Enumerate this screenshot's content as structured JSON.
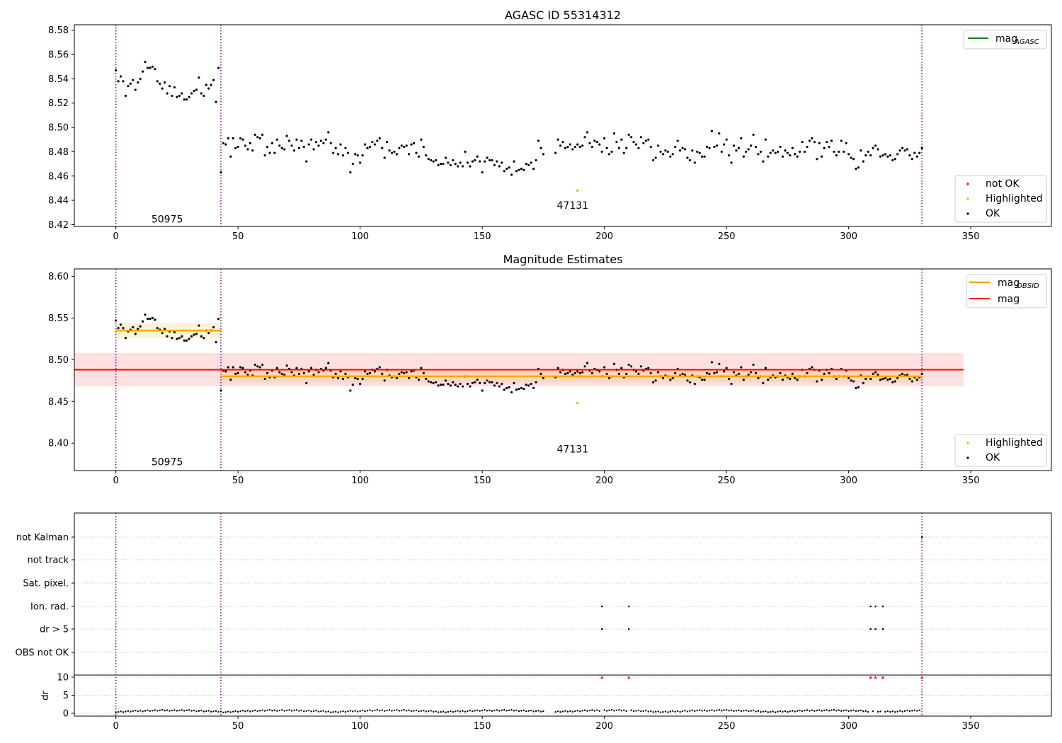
{
  "colors": {
    "ok": "#000000",
    "not_ok": "#ff0000",
    "highlighted": "#ffa500",
    "mag_agasc": "#008000",
    "mag_obsid": "#ffa500",
    "mag": "#ff0000",
    "obs_boundary": "#800080",
    "grid": "#b0b0b0"
  },
  "chart_data": [
    {
      "type": "scatter",
      "title": "AGASC ID 55314312",
      "xlim": [
        -17,
        383
      ],
      "ylim": [
        8.4185,
        8.5845
      ],
      "x_ticks": [
        0,
        50,
        100,
        150,
        200,
        250,
        300,
        350
      ],
      "y_ticks": [
        8.42,
        8.44,
        8.46,
        8.48,
        8.5,
        8.52,
        8.54,
        8.56,
        8.58
      ],
      "y_tick_labels": [
        "8.42",
        "8.44",
        "8.46",
        "8.48",
        "8.50",
        "8.52",
        "8.54",
        "8.56",
        "8.58"
      ],
      "obs_boundaries": [
        0,
        43,
        330
      ],
      "obsid_labels": [
        {
          "text": "50975",
          "x": 21,
          "y": 8.4245
        },
        {
          "text": "47131",
          "x": 187,
          "y": 8.436
        }
      ],
      "legend_upper": {
        "position": "upper right",
        "entries": [
          {
            "label": "mag",
            "subscript": "AGASC",
            "kind": "line",
            "color": "#008000"
          }
        ]
      },
      "legend_lower": {
        "position": "lower right",
        "entries": [
          {
            "label": "not OK",
            "kind": "marker",
            "color": "#ff0000"
          },
          {
            "label": "Highlighted",
            "kind": "marker",
            "color": "#ffa500"
          },
          {
            "label": "OK",
            "kind": "marker",
            "color": "#000000"
          }
        ]
      },
      "series": [
        {
          "name": "OK",
          "color": "#000000",
          "segments": [
            {
              "x_start": 0,
              "values": [
                8.547,
                8.538,
                8.542,
                8.538,
                8.526,
                8.534,
                8.536,
                8.539,
                8.531,
                8.537,
                8.54,
                8.546,
                8.554,
                8.549,
                8.549,
                8.55,
                8.548,
                8.538,
                8.536,
                8.532,
                8.537,
                8.528,
                8.534,
                8.526,
                8.533,
                8.525,
                8.526,
                8.528,
                8.523,
                8.523,
                8.525,
                8.528,
                8.53,
                8.531,
                8.541,
                8.528,
                8.526,
                8.535,
                8.532,
                8.535,
                8.539,
                8.521,
                8.549
              ]
            },
            {
              "x_start": 43,
              "values": [
                8.463,
                8.487,
                8.486,
                8.491,
                8.476,
                8.491,
                8.483,
                8.484,
                8.491,
                8.49,
                8.485,
                8.482,
                8.487,
                8.481,
                8.494,
                8.492,
                8.491,
                8.494,
                8.477,
                8.484,
                8.479,
                8.487,
                8.479,
                8.49,
                8.485,
                8.483,
                8.482,
                8.493,
                8.489,
                8.485,
                8.481,
                8.49,
                8.483,
                8.489,
                8.484,
                8.472,
                8.486,
                8.49,
                8.482,
                8.488,
                8.485,
                8.489,
                8.487,
                8.49,
                8.496,
                8.487,
                8.479,
                8.483,
                8.478,
                8.486,
                8.477,
                8.483,
                8.479,
                8.463,
                8.47,
                8.478,
                8.477,
                8.471,
                8.477,
                8.486,
                8.483,
                8.484,
                8.488,
                8.486,
                8.489,
                8.491,
                8.483,
                8.475,
                8.488,
                8.481,
                8.479,
                8.48,
                8.478,
                8.483,
                8.485,
                8.484,
                8.485,
                8.478,
                8.486,
                8.487,
                8.479,
                8.476,
                8.49,
                8.484,
                8.477,
                8.474,
                8.473,
                8.472,
                8.473,
                8.469,
                8.47,
                8.47,
                8.475,
                8.471,
                8.469,
                8.473,
                8.47,
                8.468,
                8.471,
                8.468,
                8.48,
                8.471,
                8.468,
                8.472,
                8.473,
                8.476,
                8.472,
                8.463,
                8.472,
                8.475,
                8.473,
                8.473,
                8.469,
                8.472,
                8.468,
                8.471,
                8.464,
                8.466,
                8.467,
                8.461,
                8.472,
                8.464,
                8.465,
                8.466,
                8.465,
                8.47,
                8.469,
                8.471,
                8.466,
                8.473,
                8.489,
                8.483,
                8.478
              ]
            },
            {
              "x_start": 180,
              "values": [
                8.479,
                8.49,
                8.485,
                8.488,
                8.483,
                8.484,
                8.486,
                8.482,
                8.484,
                8.486,
                8.484,
                8.485,
                8.492,
                8.496,
                8.487,
                8.484,
                8.489,
                8.488,
                8.486,
                8.48,
                8.491,
                8.483,
                8.478,
                8.48,
                8.495,
                8.488,
                8.483,
                8.49,
                8.479,
                8.483,
                8.494,
                8.492,
                8.488,
                8.486,
                8.483,
                8.492,
                8.487,
                8.489,
                8.49,
                8.484,
                8.473,
                8.475,
                8.485,
                8.48,
                8.478,
                8.481,
                8.48,
                8.476,
                8.478,
                8.484,
                8.489,
                8.481,
                8.483,
                8.482,
                8.475,
                8.473,
                8.481,
                8.471,
                8.48,
                8.479,
                8.476,
                8.476,
                8.484,
                8.483,
                8.497,
                8.484,
                8.485,
                8.495,
                8.48,
                8.486,
                8.49,
                8.477,
                8.471,
                8.485,
                8.481,
                8.483,
                8.491,
                8.476,
                8.48,
                8.482,
                8.485,
                8.494,
                8.484,
                8.478,
                8.48,
                8.472,
                8.49,
                8.476,
                8.479,
                8.481,
                8.479,
                8.48,
                8.484,
                8.476,
                8.481,
                8.479,
                8.477,
                8.483,
                8.478,
                8.476,
                8.48,
                8.488,
                8.48,
                8.484,
                8.489,
                8.491,
                8.488,
                8.474,
                8.487,
                8.476,
                8.483,
                8.488,
                8.484,
                8.489,
                8.48,
                8.477,
                8.48,
                8.489,
                8.48,
                8.487,
                8.478,
                8.475,
                8.474,
                8.466,
                8.467,
                8.481,
                8.472,
                8.477,
                8.48,
                8.477,
                8.483,
                8.485,
                8.482,
                8.476,
                8.477,
                8.478,
                8.476,
                8.477,
                8.473,
                8.474,
                8.478,
                8.481,
                8.483,
                8.481,
                8.482,
                8.477,
                8.474,
                8.479,
                8.476,
                8.479,
                8.483
              ]
            }
          ]
        },
        {
          "name": "Highlighted",
          "color": "#ffa500",
          "points": [
            [
              189,
              8.448
            ]
          ]
        }
      ]
    },
    {
      "type": "scatter",
      "title": "Magnitude Estimates",
      "xlim": [
        -17,
        383
      ],
      "ylim": [
        8.367,
        8.609
      ],
      "x_ticks": [
        0,
        50,
        100,
        150,
        200,
        250,
        300,
        350
      ],
      "y_ticks": [
        8.4,
        8.45,
        8.5,
        8.55,
        8.6
      ],
      "y_tick_labels": [
        "8.40",
        "8.45",
        "8.50",
        "8.55",
        "8.60"
      ],
      "obs_boundaries": [
        0,
        43,
        330
      ],
      "obsid_labels": [
        {
          "text": "50975",
          "x": 21,
          "y": 8.3775
        },
        {
          "text": "47131",
          "x": 187,
          "y": 8.393
        }
      ],
      "mag": {
        "value": 8.488,
        "band": [
          8.468,
          8.508
        ],
        "x_range": [
          -17,
          347
        ]
      },
      "mag_obsid": [
        {
          "x_range": [
            0,
            43
          ],
          "value": 8.535,
          "band": [
            8.526,
            8.544
          ]
        },
        {
          "x_range": [
            43,
            330
          ],
          "value": 8.48,
          "band": [
            8.473,
            8.487
          ]
        }
      ],
      "legend_upper": {
        "position": "upper right",
        "entries": [
          {
            "label": "mag",
            "subscript": "OBSID",
            "kind": "line",
            "color": "#ffa500"
          },
          {
            "label": "mag",
            "subscript": "",
            "kind": "line",
            "color": "#ff0000"
          }
        ]
      },
      "legend_lower": {
        "position": "lower right",
        "entries": [
          {
            "label": "Highlighted",
            "kind": "marker",
            "color": "#ffa500"
          },
          {
            "label": "OK",
            "kind": "marker",
            "color": "#000000"
          }
        ]
      },
      "series_source": "same points as the first panel"
    },
    {
      "type": "scatter",
      "title": "",
      "xlim": [
        -17,
        383
      ],
      "x_ticks": [
        0,
        50,
        100,
        150,
        200,
        250,
        300,
        350
      ],
      "obs_boundaries": [
        0,
        43,
        330
      ],
      "flag_rows": [
        "OBS not OK",
        "dr > 5",
        "Ion. rad.",
        "Sat. pixel.",
        "not track",
        "not Kalman"
      ],
      "flag_points": [
        {
          "flag": "Ion. rad.",
          "x": [
            199,
            210,
            309,
            311,
            314
          ]
        },
        {
          "flag": "dr > 5",
          "x": [
            199,
            210,
            309,
            311,
            314
          ]
        },
        {
          "flag": "not Kalman",
          "x": [
            330
          ]
        }
      ],
      "dr": {
        "ylabel": "dr",
        "y_ticks": [
          0,
          5,
          10
        ],
        "y_tick_labels": [
          "0",
          "5",
          "10"
        ],
        "clip": 10,
        "clipped_x": [
          199,
          210,
          309,
          311,
          314,
          330
        ],
        "values_note": "0–1.3 for all other points"
      }
    }
  ]
}
